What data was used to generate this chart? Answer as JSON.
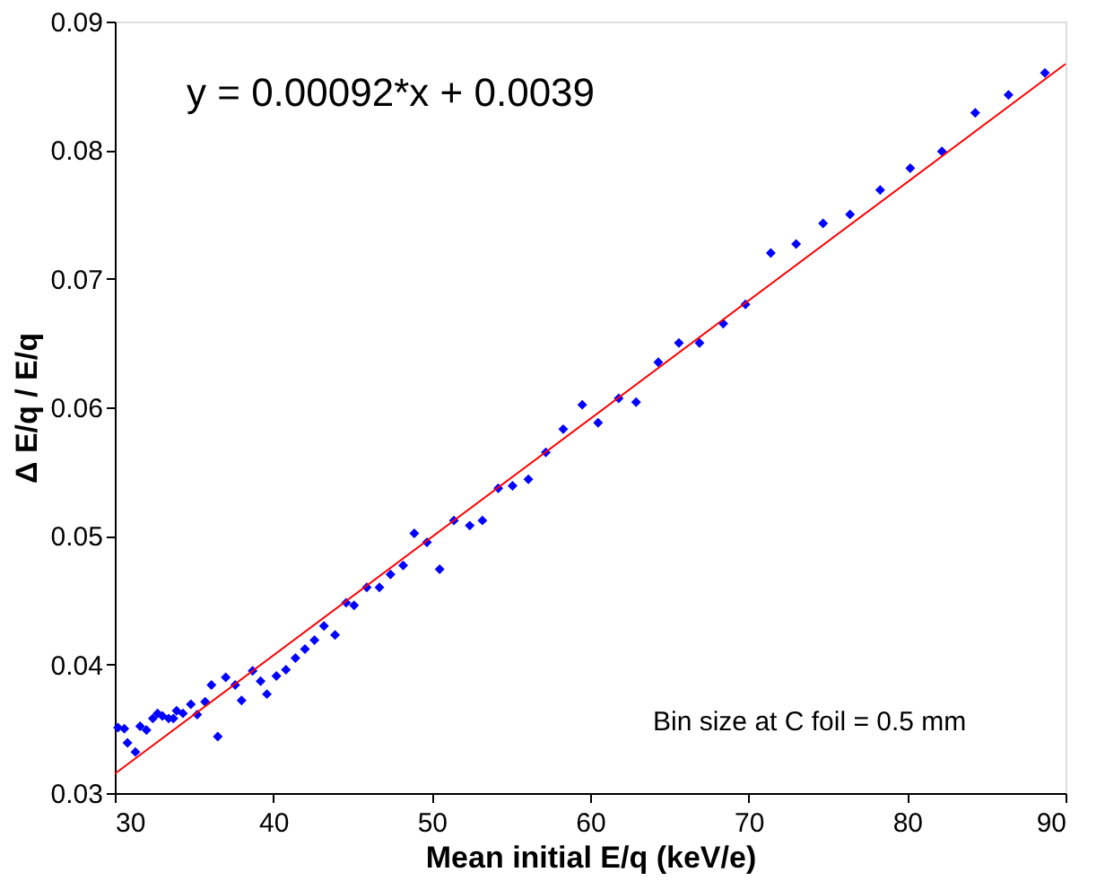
{
  "chart_data": {
    "type": "scatter",
    "xlabel": "Mean initial E/q (keV/e)",
    "ylabel": "Δ E/q / E/q",
    "xlim": [
      30,
      90
    ],
    "xticks": [
      30,
      40,
      50,
      60,
      70,
      80,
      90
    ],
    "ylim": [
      0.03,
      0.09
    ],
    "yticks": [
      0.03,
      0.04,
      0.05,
      0.06,
      0.07,
      0.08,
      0.09
    ],
    "grid": false,
    "marker": "diamond",
    "annotations": [
      "y = 0.00092*x + 0.0039",
      "Bin size at C foil = 0.5 mm"
    ],
    "series": [
      {
        "color": "#0000ff",
        "x": [
          30.2,
          30.6,
          30.8,
          31.3,
          31.6,
          32.0,
          32.4,
          32.7,
          33.0,
          33.4,
          33.7,
          33.9,
          34.3,
          34.8,
          35.2,
          35.7,
          36.1,
          36.5,
          37.0,
          37.6,
          38.0,
          38.7,
          39.2,
          39.6,
          40.2,
          40.8,
          41.4,
          42.0,
          42.6,
          43.2,
          43.9,
          44.6,
          45.1,
          45.9,
          46.7,
          47.4,
          48.2,
          48.9,
          49.7,
          50.5,
          51.4,
          52.4,
          53.2,
          54.2,
          55.1,
          56.1,
          57.2,
          58.3,
          59.5,
          60.5,
          61.8,
          62.9,
          64.3,
          65.6,
          66.9,
          68.4,
          69.8,
          71.4,
          73.0,
          74.7,
          76.4,
          78.3,
          80.2,
          82.2,
          84.3,
          86.4,
          88.7
        ],
        "values": [
          0.0351,
          0.035,
          0.0339,
          0.0332,
          0.0352,
          0.0349,
          0.0358,
          0.0362,
          0.036,
          0.0358,
          0.0358,
          0.0364,
          0.0362,
          0.0369,
          0.0361,
          0.0371,
          0.0384,
          0.0344,
          0.039,
          0.0384,
          0.0372,
          0.0395,
          0.0387,
          0.0377,
          0.0391,
          0.0396,
          0.0405,
          0.0412,
          0.0419,
          0.043,
          0.0423,
          0.0448,
          0.0446,
          0.046,
          0.046,
          0.047,
          0.0477,
          0.0502,
          0.0495,
          0.0474,
          0.0512,
          0.0508,
          0.0512,
          0.0537,
          0.0539,
          0.0544,
          0.0565,
          0.0583,
          0.0602,
          0.0588,
          0.0607,
          0.0604,
          0.0635,
          0.065,
          0.065,
          0.0665,
          0.068,
          0.072,
          0.0727,
          0.0743,
          0.075,
          0.0769,
          0.0786,
          0.0799,
          0.0829,
          0.0843,
          0.086
        ]
      },
      {
        "type": "line",
        "marker": "none",
        "color": "#ff0000",
        "x": [
          30,
          90
        ],
        "values": [
          0.0315,
          0.0867
        ]
      }
    ]
  }
}
